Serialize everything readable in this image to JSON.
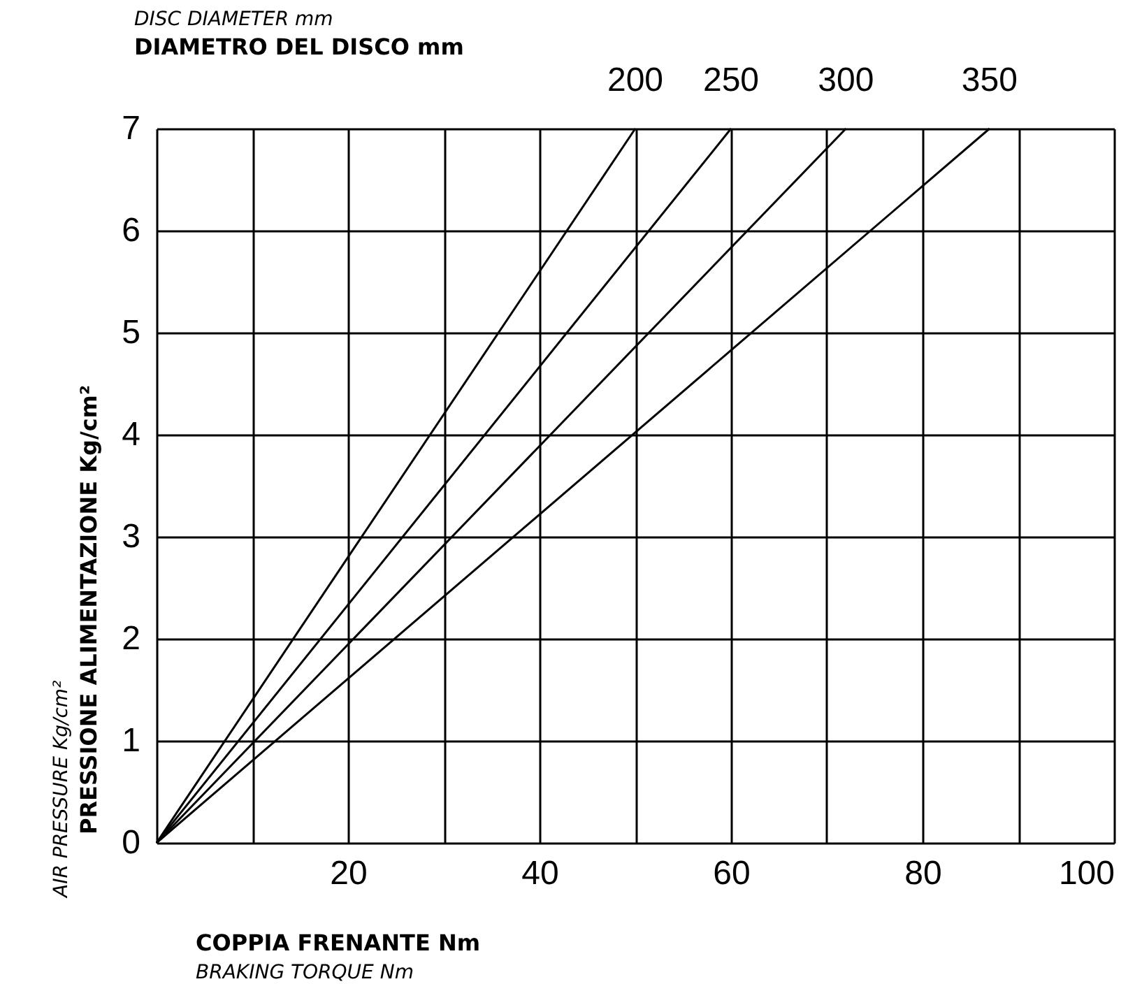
{
  "chart_data": {
    "type": "line",
    "title": "DIAMETRO DEL DISCO mm",
    "subtitle": "DISC DIAMETER mm",
    "xlabel": "COPPIA FRENANTE Nm",
    "ylabel": "PRESSIONE ALIMENTAZIONE Kg/cm²",
    "annotations": [
      "BRAKING TORQUE Nm",
      "AIR PRESSURE Kg/cm²"
    ],
    "series": [
      {
        "name": "200",
        "color": "#000000",
        "x": [
          0,
          50
        ],
        "values": [
          0,
          7
        ]
      },
      {
        "name": "250",
        "color": "#000000",
        "x": [
          0,
          60
        ],
        "values": [
          0,
          7
        ]
      },
      {
        "name": "300",
        "color": "#000000",
        "x": [
          0,
          72
        ],
        "values": [
          0,
          7
        ]
      },
      {
        "name": "350",
        "color": "#000000",
        "x": [
          0,
          87
        ],
        "values": [
          0,
          7
        ]
      }
    ],
    "xlim": [
      0,
      100
    ],
    "xticks": [
      {
        "value": 0,
        "label": null
      },
      {
        "value": 10,
        "label": null
      },
      20,
      {
        "value": 30,
        "label": null
      },
      40,
      {
        "value": 50,
        "label": null
      },
      60,
      {
        "value": 70,
        "label": null
      },
      80,
      {
        "value": 90,
        "label": null
      },
      100
    ],
    "ylim": [
      0,
      7
    ],
    "yticks": [
      0,
      1,
      2,
      3,
      4,
      5,
      6,
      7
    ],
    "grid": true,
    "marker": "none",
    "line_style": "solid",
    "legend": false
  }
}
